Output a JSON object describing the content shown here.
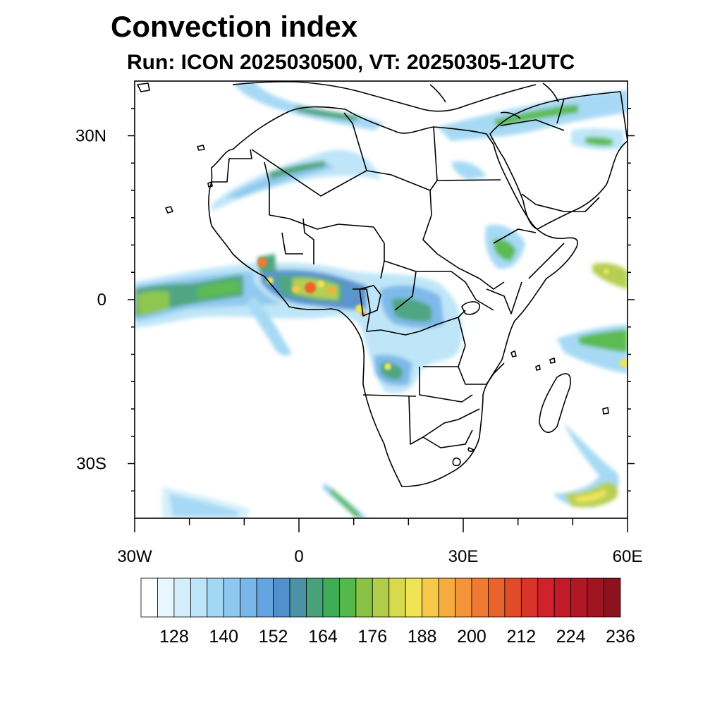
{
  "title": "Convection index",
  "subtitle": "Run: ICON 2025030500,  VT: 20250305-12UTC",
  "map": {
    "region": "Africa",
    "projection": "lat-lon",
    "lon_range": [
      -30,
      60
    ],
    "lat_range": [
      -40,
      40
    ],
    "lat_ticks": [
      {
        "value": 30,
        "label": "30N"
      },
      {
        "value": 0,
        "label": "0"
      },
      {
        "value": -30,
        "label": "30S"
      }
    ],
    "lon_ticks": [
      {
        "value": -30,
        "label": "30W"
      },
      {
        "value": 0,
        "label": "0"
      },
      {
        "value": 30,
        "label": "30E"
      },
      {
        "value": 60,
        "label": "60E"
      }
    ],
    "minor_lat": [
      35,
      25,
      20,
      15,
      10,
      5,
      -5,
      -10,
      -15,
      -20,
      -25,
      -35
    ],
    "minor_lon": [
      -20,
      -10,
      10,
      20,
      40,
      50
    ]
  },
  "colorbar": {
    "colors": [
      "#ffffff",
      "#e9f6fd",
      "#d3eefb",
      "#bce5f8",
      "#a3d8f4",
      "#8cc8ef",
      "#78b7e8",
      "#64a4e0",
      "#5290cc",
      "#4b92a6",
      "#46a17c",
      "#3fad56",
      "#55b84a",
      "#89c346",
      "#b2cd49",
      "#d8da4d",
      "#f0e354",
      "#f8c848",
      "#f6ad3e",
      "#f39538",
      "#ef7b32",
      "#ea622c",
      "#e24b2a",
      "#da3329",
      "#d0222a",
      "#c21a28",
      "#b01826",
      "#a01522",
      "#8c121d"
    ],
    "labels": [
      "128",
      "140",
      "152",
      "164",
      "176",
      "188",
      "200",
      "212",
      "224",
      "236"
    ]
  }
}
